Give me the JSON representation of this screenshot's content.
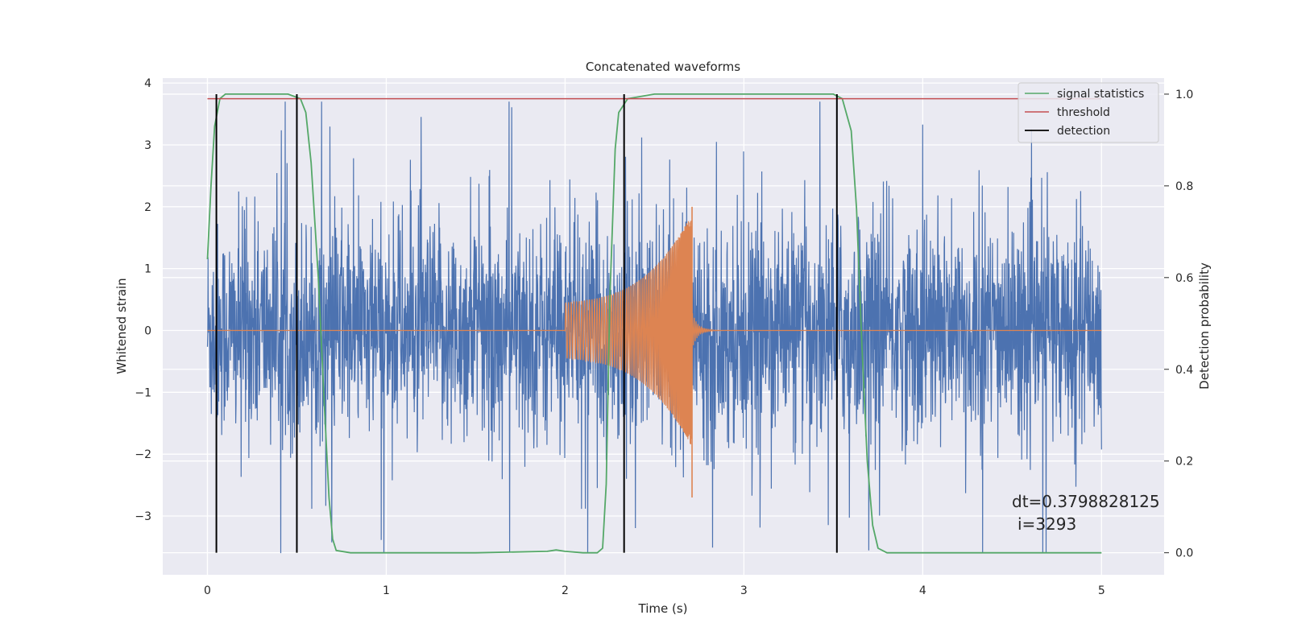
{
  "chart_data": {
    "type": "line",
    "title": "Concatenated waveforms",
    "xlabel": "Time (s)",
    "ylabel": "Whitened strain",
    "y2label": "Detection probability",
    "xlim": [
      -0.25,
      5.35
    ],
    "ylim": [
      -3.95,
      4.08
    ],
    "y2lim": [
      -0.048,
      1.035
    ],
    "xticks": [
      0,
      1,
      2,
      3,
      4,
      5
    ],
    "yticks": [
      -3,
      -2,
      -1,
      0,
      1,
      2,
      3,
      4
    ],
    "y2ticks": [
      0.0,
      0.2,
      0.4,
      0.6,
      0.8,
      1.0
    ],
    "xtick_labels": [
      "0",
      "1",
      "2",
      "3",
      "4",
      "5"
    ],
    "ytick_labels": [
      "−3",
      "−2",
      "−1",
      "0",
      "1",
      "2",
      "3",
      "4"
    ],
    "y2tick_labels": [
      "0.0",
      "0.2",
      "0.4",
      "0.6",
      "0.8",
      "1.0"
    ],
    "grid": true,
    "legend_position": "top-right",
    "colors": {
      "noise": "#4c72b0",
      "template": "#dd8452",
      "signal_statistics": "#55a868",
      "threshold": "#c44e52",
      "detection": "#000000",
      "background": "#eaeaf2"
    },
    "series": [
      {
        "name": "signal statistics",
        "axis": "right",
        "x": [
          0.0,
          0.02,
          0.04,
          0.07,
          0.1,
          0.2,
          0.3,
          0.45,
          0.52,
          0.55,
          0.58,
          0.62,
          0.65,
          0.68,
          0.7,
          0.72,
          0.8,
          1.0,
          1.5,
          1.9,
          1.95,
          2.0,
          2.1,
          2.18,
          2.21,
          2.23,
          2.25,
          2.28,
          2.3,
          2.35,
          2.5,
          3.0,
          3.5,
          3.55,
          3.6,
          3.63,
          3.66,
          3.69,
          3.72,
          3.75,
          3.8,
          4.5,
          5.0
        ],
        "values": [
          0.64,
          0.8,
          0.93,
          0.99,
          1.0,
          1.0,
          1.0,
          1.0,
          0.99,
          0.96,
          0.85,
          0.6,
          0.35,
          0.12,
          0.03,
          0.005,
          0.0,
          0.0,
          0.0,
          0.003,
          0.006,
          0.003,
          0.0,
          0.0,
          0.01,
          0.15,
          0.55,
          0.88,
          0.96,
          0.99,
          1.0,
          1.0,
          1.0,
          0.99,
          0.92,
          0.75,
          0.45,
          0.2,
          0.06,
          0.01,
          0.0,
          0.0,
          0.0
        ]
      },
      {
        "name": "threshold",
        "axis": "right",
        "x": [
          0.0,
          5.0
        ],
        "values": [
          0.99,
          0.99
        ]
      },
      {
        "name": "detection",
        "axis": "right",
        "x": [
          0.05,
          0.5,
          2.33,
          3.52
        ],
        "values": [
          1.0,
          1.0,
          1.0,
          1.0
        ]
      }
    ],
    "legend": [
      "signal statistics",
      "threshold",
      "detection"
    ],
    "annotation": [
      "dt=0.3798828125",
      "i=3293"
    ]
  }
}
